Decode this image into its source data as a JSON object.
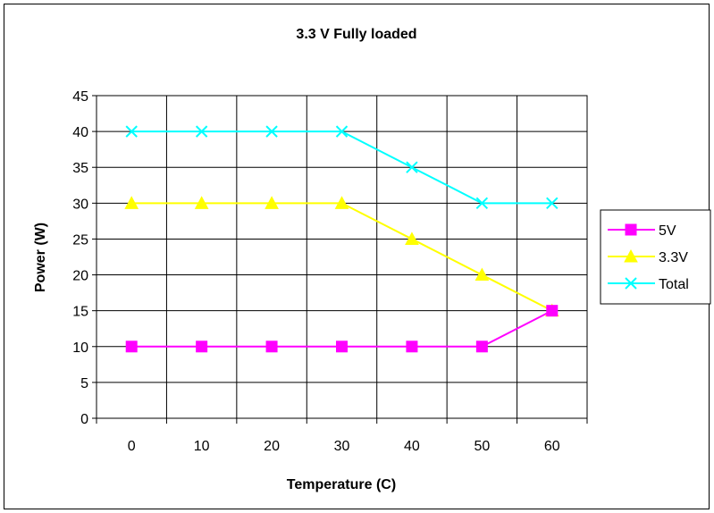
{
  "chart_data": {
    "type": "line",
    "title": "3.3 V Fully loaded",
    "xlabel": "Temperature (C)",
    "ylabel": "Power (W)",
    "categories": [
      "0",
      "10",
      "20",
      "30",
      "40",
      "50",
      "60"
    ],
    "ylim": [
      0,
      45
    ],
    "yticks": [
      "0",
      "5",
      "10",
      "15",
      "20",
      "25",
      "30",
      "35",
      "40",
      "45"
    ],
    "grid": true,
    "legend_position": "right",
    "series": [
      {
        "name": "5V",
        "values": [
          10,
          10,
          10,
          10,
          10,
          10,
          15
        ],
        "color": "#FF00FF",
        "marker": "square"
      },
      {
        "name": "3.3V",
        "values": [
          30,
          30,
          30,
          30,
          25,
          20,
          15
        ],
        "color": "#FFFF00",
        "marker": "triangle"
      },
      {
        "name": "Total",
        "values": [
          40,
          40,
          40,
          40,
          35,
          30,
          30
        ],
        "color": "#00FFFF",
        "marker": "x"
      }
    ]
  }
}
